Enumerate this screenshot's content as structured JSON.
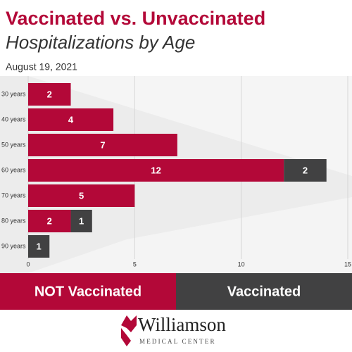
{
  "chart_data": {
    "type": "stacked-barh",
    "title": "Vaccinated vs. Unvaccinated",
    "subtitle": "Hospitalizations by Age",
    "date": "August 19, 2021",
    "categories": [
      "30 years",
      "40 years",
      "50 years",
      "60 years",
      "70 years",
      "80 years",
      "90 years"
    ],
    "series": [
      {
        "name": "NOT Vaccinated",
        "color": "#b30838",
        "values": [
          2,
          4,
          7,
          12,
          5,
          2,
          null
        ]
      },
      {
        "name": "Vaccinated",
        "color": "#414142",
        "values": [
          null,
          null,
          null,
          2,
          null,
          1,
          1
        ]
      }
    ],
    "xlim": [
      0,
      15
    ],
    "xticks": [
      0,
      5,
      10,
      15
    ],
    "grid": true,
    "legend": "bottom"
  },
  "logo": {
    "name": "Williamson",
    "tagline": "MEDICAL CENTER"
  }
}
